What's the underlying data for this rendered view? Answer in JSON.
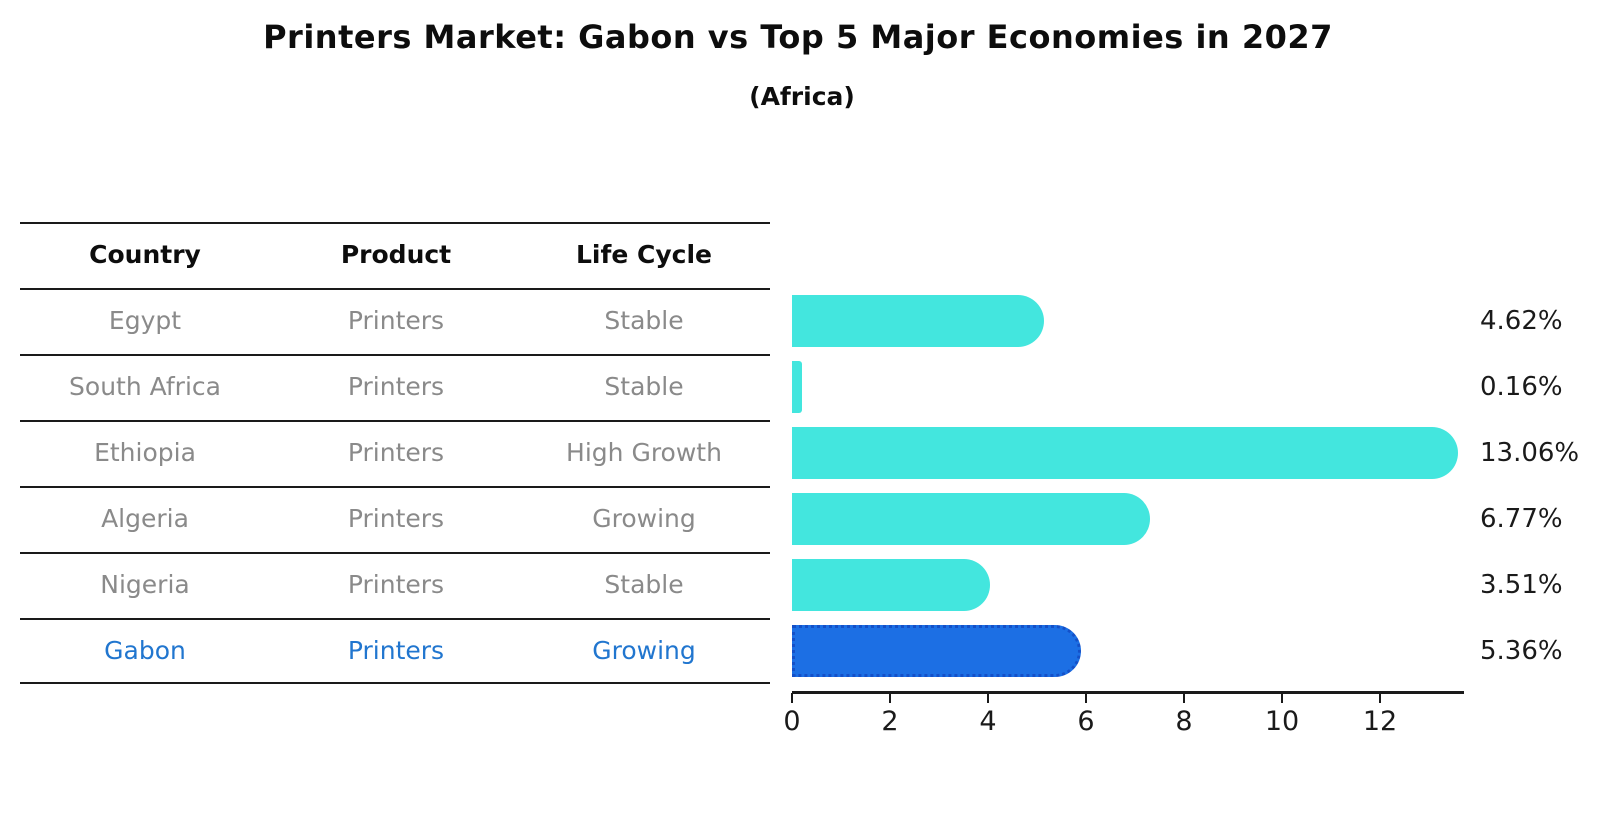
{
  "title": "Printers Market: Gabon vs Top 5 Major Economies in 2027",
  "subtitle": "(Africa)",
  "table": {
    "headers": [
      "Country",
      "Product",
      "Life Cycle"
    ],
    "rows": [
      {
        "country": "Egypt",
        "product": "Printers",
        "life_cycle": "Stable",
        "highlight": false
      },
      {
        "country": "South Africa",
        "product": "Printers",
        "life_cycle": "Stable",
        "highlight": false
      },
      {
        "country": "Ethiopia",
        "product": "Printers",
        "life_cycle": "High Growth",
        "highlight": false
      },
      {
        "country": "Algeria",
        "product": "Printers",
        "life_cycle": "Growing",
        "highlight": false
      },
      {
        "country": "Nigeria",
        "product": "Printers",
        "life_cycle": "Stable",
        "highlight": false
      },
      {
        "country": "Gabon",
        "product": "Printers",
        "life_cycle": "Growing",
        "highlight": true
      }
    ]
  },
  "chart_data": {
    "type": "bar",
    "orientation": "horizontal",
    "title": "Printers Market: Gabon vs Top 5 Major Economies in 2027",
    "subtitle": "(Africa)",
    "categories": [
      "Egypt",
      "South Africa",
      "Ethiopia",
      "Algeria",
      "Nigeria",
      "Gabon"
    ],
    "values": [
      4.62,
      0.16,
      13.06,
      6.77,
      3.51,
      5.36
    ],
    "value_labels": [
      "4.62%",
      "0.16%",
      "13.06%",
      "6.77%",
      "3.51%",
      "5.36%"
    ],
    "x_ticks": [
      "0",
      "2",
      "4",
      "6",
      "8",
      "10",
      "12"
    ],
    "xlim": [
      0,
      13.7
    ],
    "grid": false,
    "legend": "none",
    "highlight_index": 5,
    "colors": {
      "bar": "#43E6DE",
      "highlight_bar": "#1C6FE4",
      "highlight_bar_border": "#1450C8",
      "row_text": "#8A8A8A",
      "highlight_text": "#2176CF",
      "axis_text": "#1A1A1A"
    }
  }
}
